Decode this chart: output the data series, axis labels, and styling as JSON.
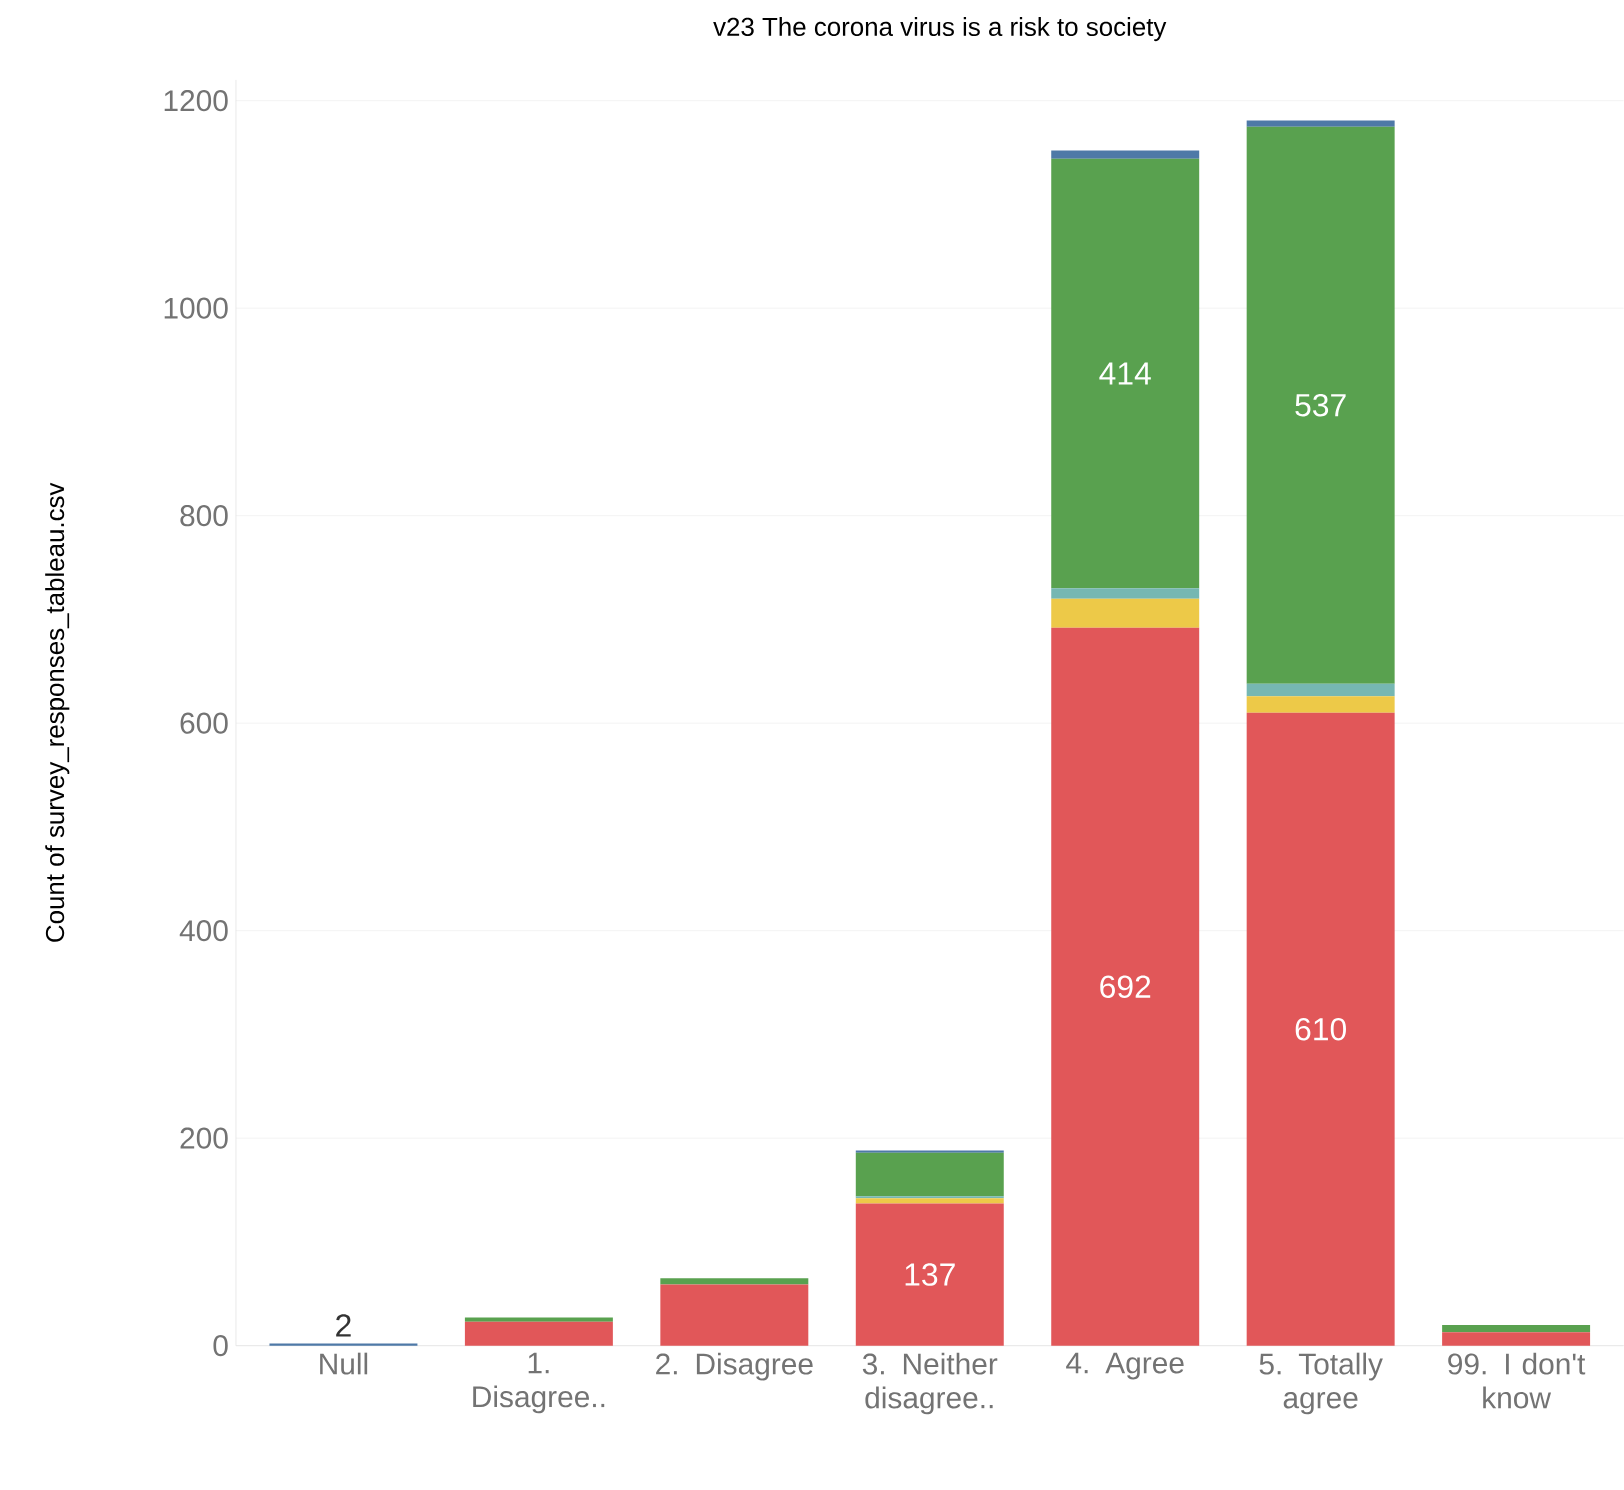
{
  "chart_data": {
    "type": "bar",
    "stacked": true,
    "title": "v23 The corona virus is a risk to society",
    "ylabel": "Count of survey_responses_tableau.csv",
    "categories": [
      "Null",
      "1. Disagree..",
      "2. Disagree",
      "3. Neither disagree..",
      "4. Agree",
      "5. Totally agree",
      "99. I don't know"
    ],
    "series": [
      {
        "color": "#e15759",
        "values": [
          0,
          23,
          59,
          137,
          692,
          610,
          13
        ],
        "value_labels": [
          null,
          null,
          null,
          "137",
          "692",
          "610",
          null
        ]
      },
      {
        "color": "#edc948",
        "values": [
          0,
          0,
          0,
          5,
          28,
          16,
          0
        ]
      },
      {
        "color": "#76b7b2",
        "values": [
          0,
          0,
          0,
          2,
          10,
          12,
          0
        ]
      },
      {
        "color": "#59a14f",
        "values": [
          0,
          4,
          6,
          42,
          414,
          537,
          7
        ],
        "value_labels": [
          null,
          null,
          null,
          null,
          "414",
          "537",
          null
        ]
      },
      {
        "color": "#4e79a7",
        "values": [
          2,
          0,
          0,
          2,
          8,
          6,
          0
        ],
        "value_labels": [
          "2",
          null,
          null,
          null,
          null,
          null,
          null
        ]
      }
    ],
    "ylim": [
      0,
      1220
    ],
    "yticks": [
      0,
      200,
      400,
      600,
      800,
      1000,
      1200
    ],
    "grid": "y"
  }
}
